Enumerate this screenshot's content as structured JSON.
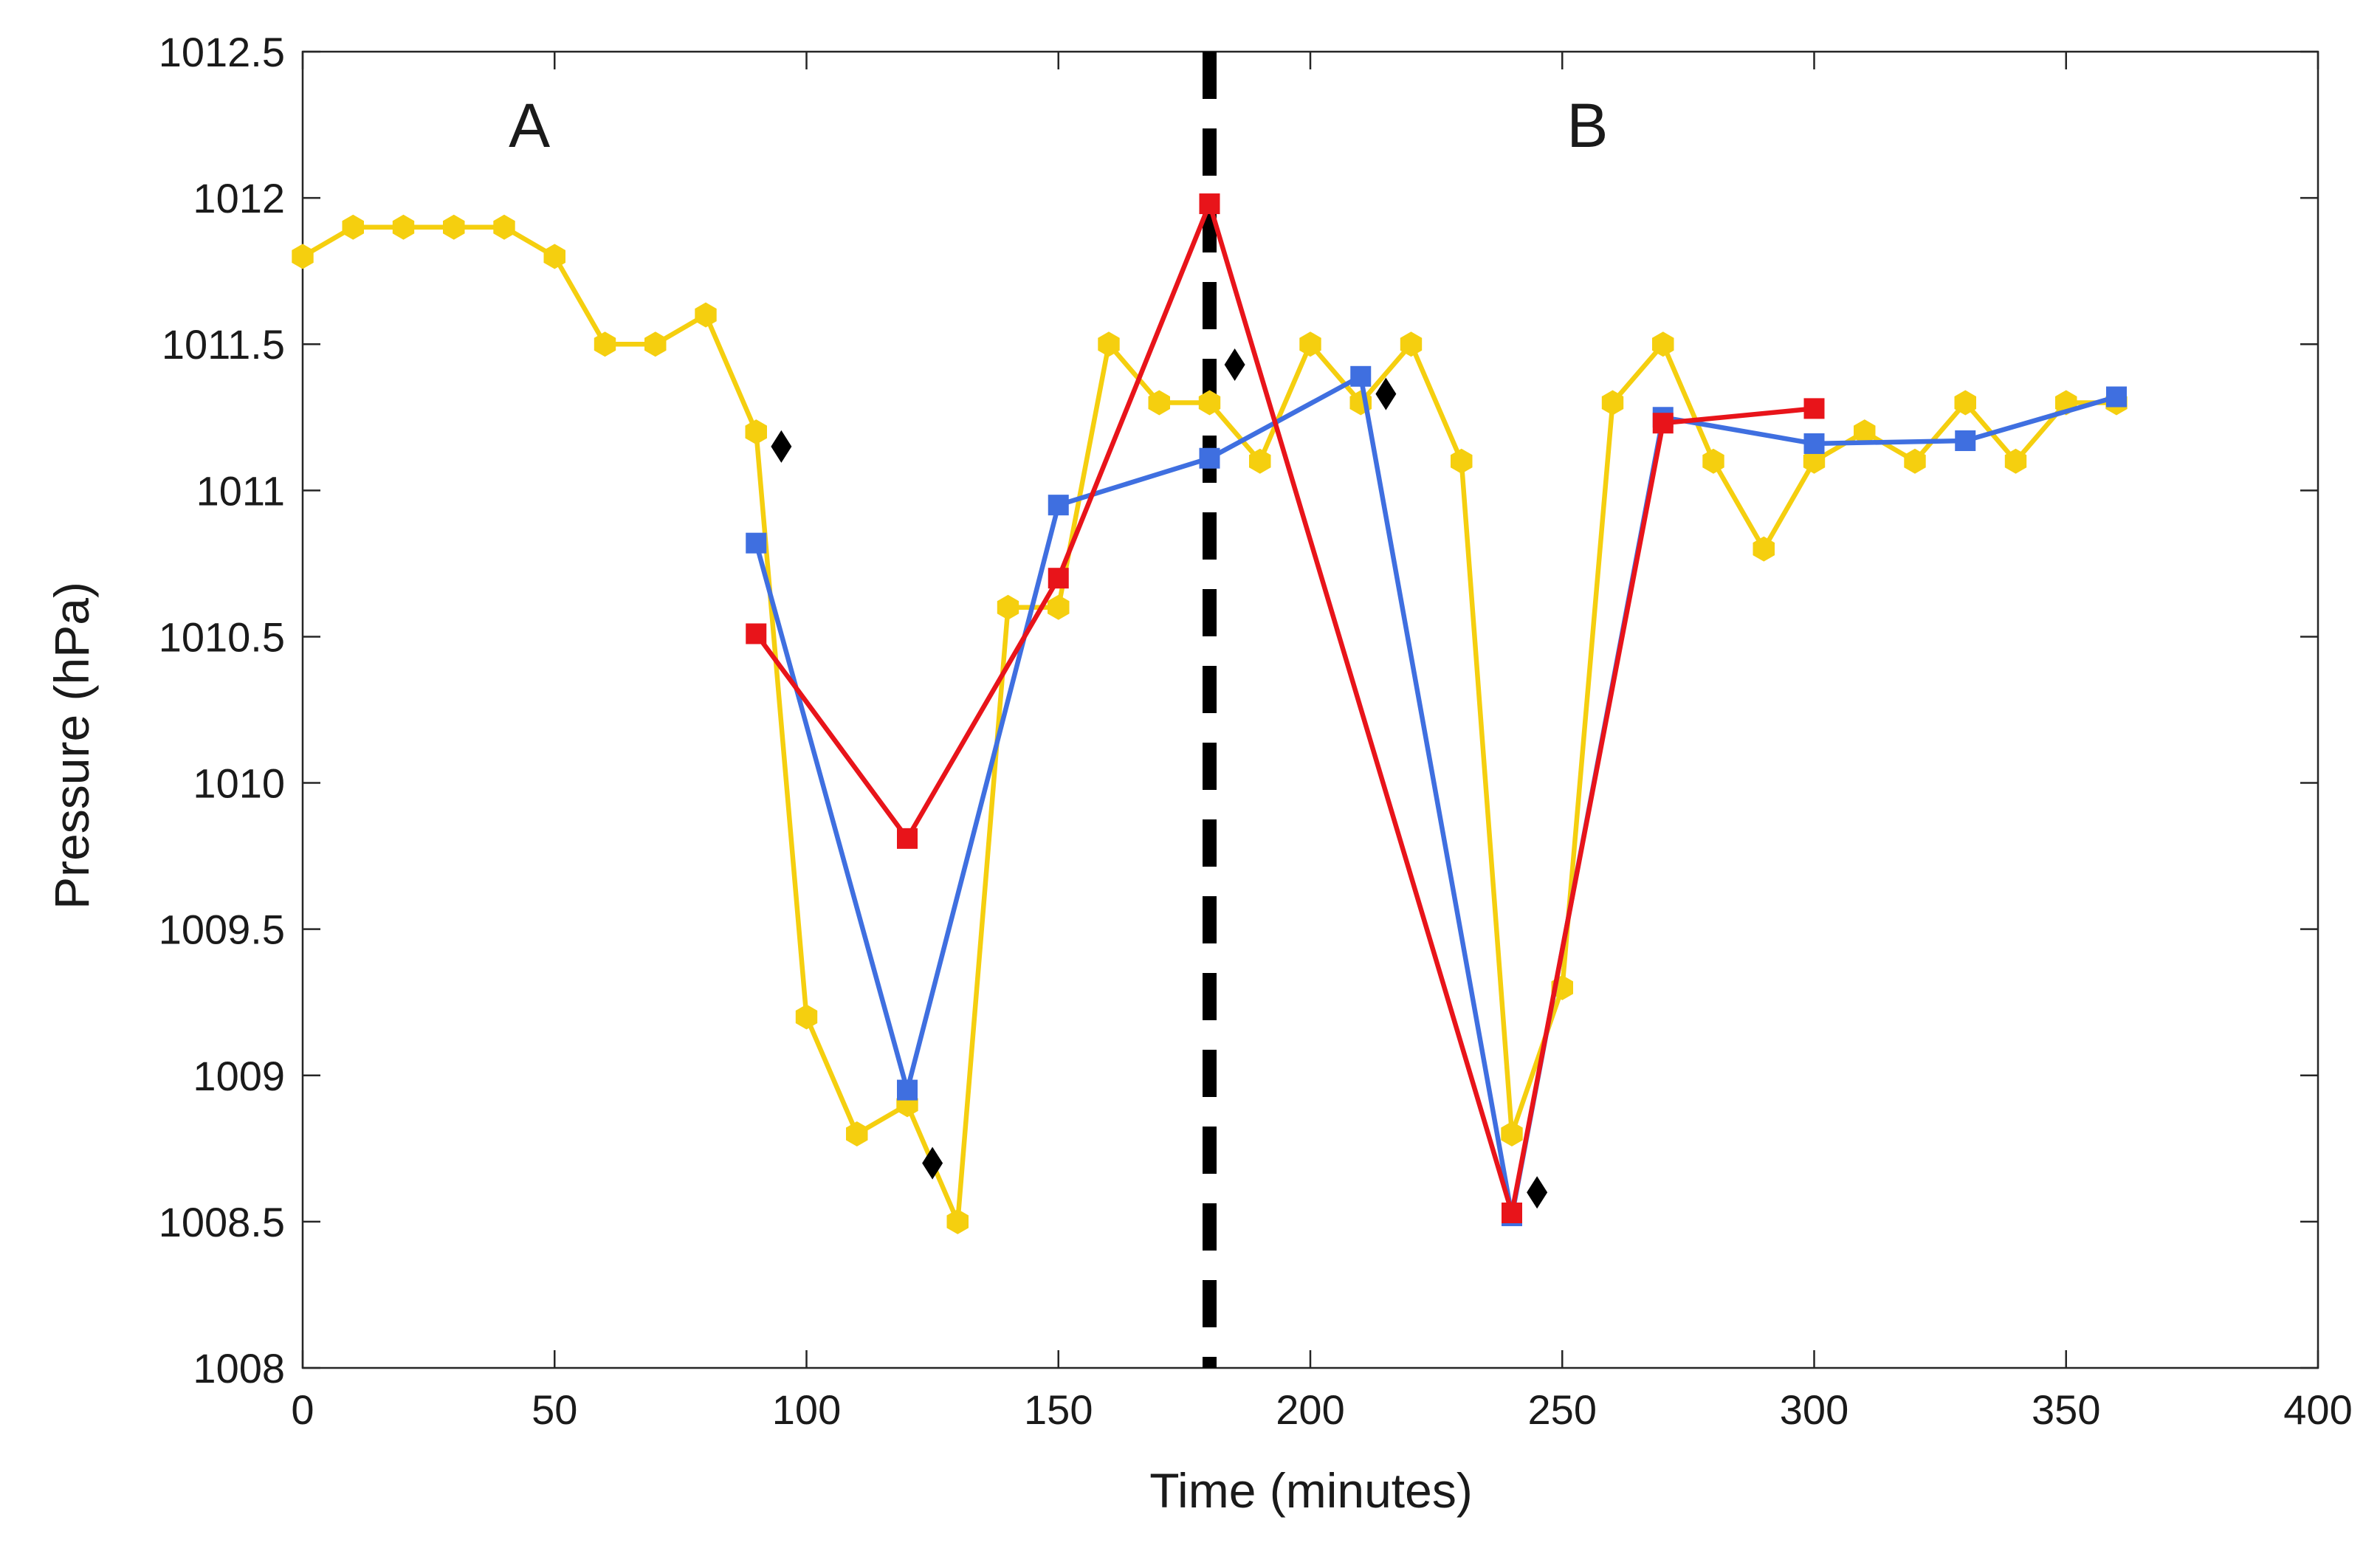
{
  "chart_data": {
    "type": "line",
    "title": "",
    "xlabel": "Time (minutes)",
    "ylabel": "Pressure (hPa)",
    "xlim": [
      0,
      400
    ],
    "ylim": [
      1008,
      1012.5
    ],
    "xticks": [
      0,
      50,
      100,
      150,
      200,
      250,
      300,
      350,
      400
    ],
    "yticks": [
      1008,
      1008.5,
      1009,
      1009.5,
      1010,
      1010.5,
      1011,
      1011.5,
      1012,
      1012.5
    ],
    "xtick_labels": [
      "0",
      "50",
      "100",
      "150",
      "200",
      "250",
      "300",
      "350",
      "400"
    ],
    "ytick_labels": [
      "1008",
      "1008.5",
      "1009",
      "1009.5",
      "1010",
      "1010.5",
      "1011",
      "1011.5",
      "1012",
      "1012.5"
    ],
    "grid": false,
    "vertical_line": {
      "x": 180,
      "style": "dashed",
      "color": "#000000"
    },
    "annotations": [
      {
        "text": "A",
        "x": 45,
        "y": 1012.25
      },
      {
        "text": "B",
        "x": 255,
        "y": 1012.25
      }
    ],
    "series": [
      {
        "name": "yellow-series",
        "color": "#F5CF0F",
        "marker": "hexagon",
        "x": [
          0,
          10,
          20,
          30,
          40,
          50,
          60,
          70,
          80,
          90,
          100,
          110,
          120,
          130,
          140,
          150,
          160,
          170,
          180,
          190,
          200,
          210,
          220,
          230,
          240,
          250,
          260,
          270,
          280,
          290,
          300,
          310,
          320,
          330,
          340,
          350,
          360
        ],
        "y": [
          1011.8,
          1011.9,
          1011.9,
          1011.9,
          1011.9,
          1011.8,
          1011.5,
          1011.5,
          1011.6,
          1011.2,
          1009.2,
          1008.8,
          1008.9,
          1008.5,
          1010.6,
          1010.6,
          1011.5,
          1011.3,
          1011.3,
          1011.1,
          1011.5,
          1011.3,
          1011.5,
          1011.1,
          1008.8,
          1009.3,
          1011.3,
          1011.5,
          1011.1,
          1010.8,
          1011.1,
          1011.2,
          1011.1,
          1011.3,
          1011.1,
          1011.3,
          1011.3
        ]
      },
      {
        "name": "blue-series",
        "color": "#3F6FE0",
        "marker": "square",
        "x": [
          90,
          120,
          150,
          180,
          210,
          240,
          270,
          300,
          330,
          360
        ],
        "y": [
          1010.82,
          1008.95,
          1010.95,
          1011.11,
          1011.39,
          1008.52,
          1011.25,
          1011.16,
          1011.17,
          1011.32
        ]
      },
      {
        "name": "red-series",
        "color": "#E8141A",
        "marker": "square",
        "x": [
          90,
          120,
          150,
          180,
          240,
          270,
          300
        ],
        "y": [
          1010.51,
          1009.81,
          1010.7,
          1011.98,
          1008.53,
          1011.23,
          1011.28
        ]
      },
      {
        "name": "black-diamonds",
        "color": "#000000",
        "marker": "diamond",
        "line": false,
        "x": [
          95,
          125,
          185,
          215,
          245
        ],
        "y": [
          1011.15,
          1008.7,
          1011.43,
          1011.33,
          1008.6
        ]
      }
    ]
  }
}
